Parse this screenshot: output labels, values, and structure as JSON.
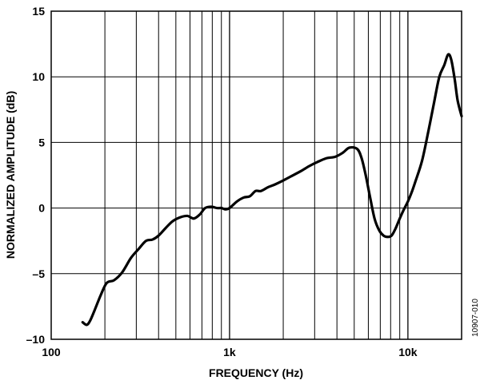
{
  "chart_data": {
    "type": "line",
    "xscale": "log",
    "xlim": [
      100,
      20000
    ],
    "ylim": [
      -10,
      15
    ],
    "grid": true,
    "xlabel": "FREQUENCY (Hz)",
    "ylabel": "NORMALIZED AMPLITUDE (dB)",
    "figure_id": "10907-010",
    "x_ticks": [
      {
        "value": 100,
        "label": "100"
      },
      {
        "value": 1000,
        "label": "1k"
      },
      {
        "value": 10000,
        "label": "10k"
      }
    ],
    "y_ticks": [
      {
        "value": 15,
        "label": "15"
      },
      {
        "value": 10,
        "label": "10"
      },
      {
        "value": 5,
        "label": "5"
      },
      {
        "value": 0,
        "label": "0"
      },
      {
        "value": -5,
        "label": "–5"
      },
      {
        "value": -10,
        "label": "–10"
      }
    ],
    "minor_x_grid": [
      200,
      300,
      400,
      500,
      600,
      700,
      800,
      900,
      2000,
      3000,
      4000,
      5000,
      6000,
      7000,
      8000,
      9000,
      20000
    ],
    "series": [
      {
        "color": "#000000",
        "x": [
          150,
          158,
          165,
          175,
          190,
          205,
          225,
          250,
          280,
          310,
          340,
          370,
          400,
          440,
          480,
          530,
          580,
          630,
          680,
          730,
          790,
          850,
          900,
          950,
          1000,
          1100,
          1200,
          1300,
          1400,
          1500,
          1650,
          1800,
          2000,
          2200,
          2500,
          2800,
          3100,
          3500,
          3900,
          4300,
          4700,
          5200,
          5500,
          5800,
          6100,
          6500,
          6900,
          7300,
          7700,
          8100,
          8500,
          9000,
          9500,
          10000,
          10500,
          11000,
          12000,
          13000,
          14000,
          15000,
          16000,
          16800,
          17500,
          18300,
          19000,
          20000
        ],
        "y": [
          -8.7,
          -8.9,
          -8.6,
          -7.8,
          -6.6,
          -5.7,
          -5.5,
          -4.9,
          -3.8,
          -3.1,
          -2.5,
          -2.4,
          -2.1,
          -1.5,
          -1.0,
          -0.7,
          -0.6,
          -0.8,
          -0.5,
          0.0,
          0.1,
          0.0,
          0.0,
          -0.1,
          0.0,
          0.5,
          0.8,
          0.9,
          1.3,
          1.3,
          1.6,
          1.8,
          2.1,
          2.4,
          2.8,
          3.2,
          3.5,
          3.8,
          3.9,
          4.2,
          4.6,
          4.5,
          3.8,
          2.5,
          1.0,
          -0.8,
          -1.7,
          -2.1,
          -2.2,
          -2.1,
          -1.6,
          -0.8,
          -0.1,
          0.5,
          1.2,
          2.0,
          3.6,
          5.8,
          8.0,
          10.0,
          10.9,
          11.7,
          11.3,
          9.8,
          8.2,
          7.0
        ]
      }
    ]
  }
}
